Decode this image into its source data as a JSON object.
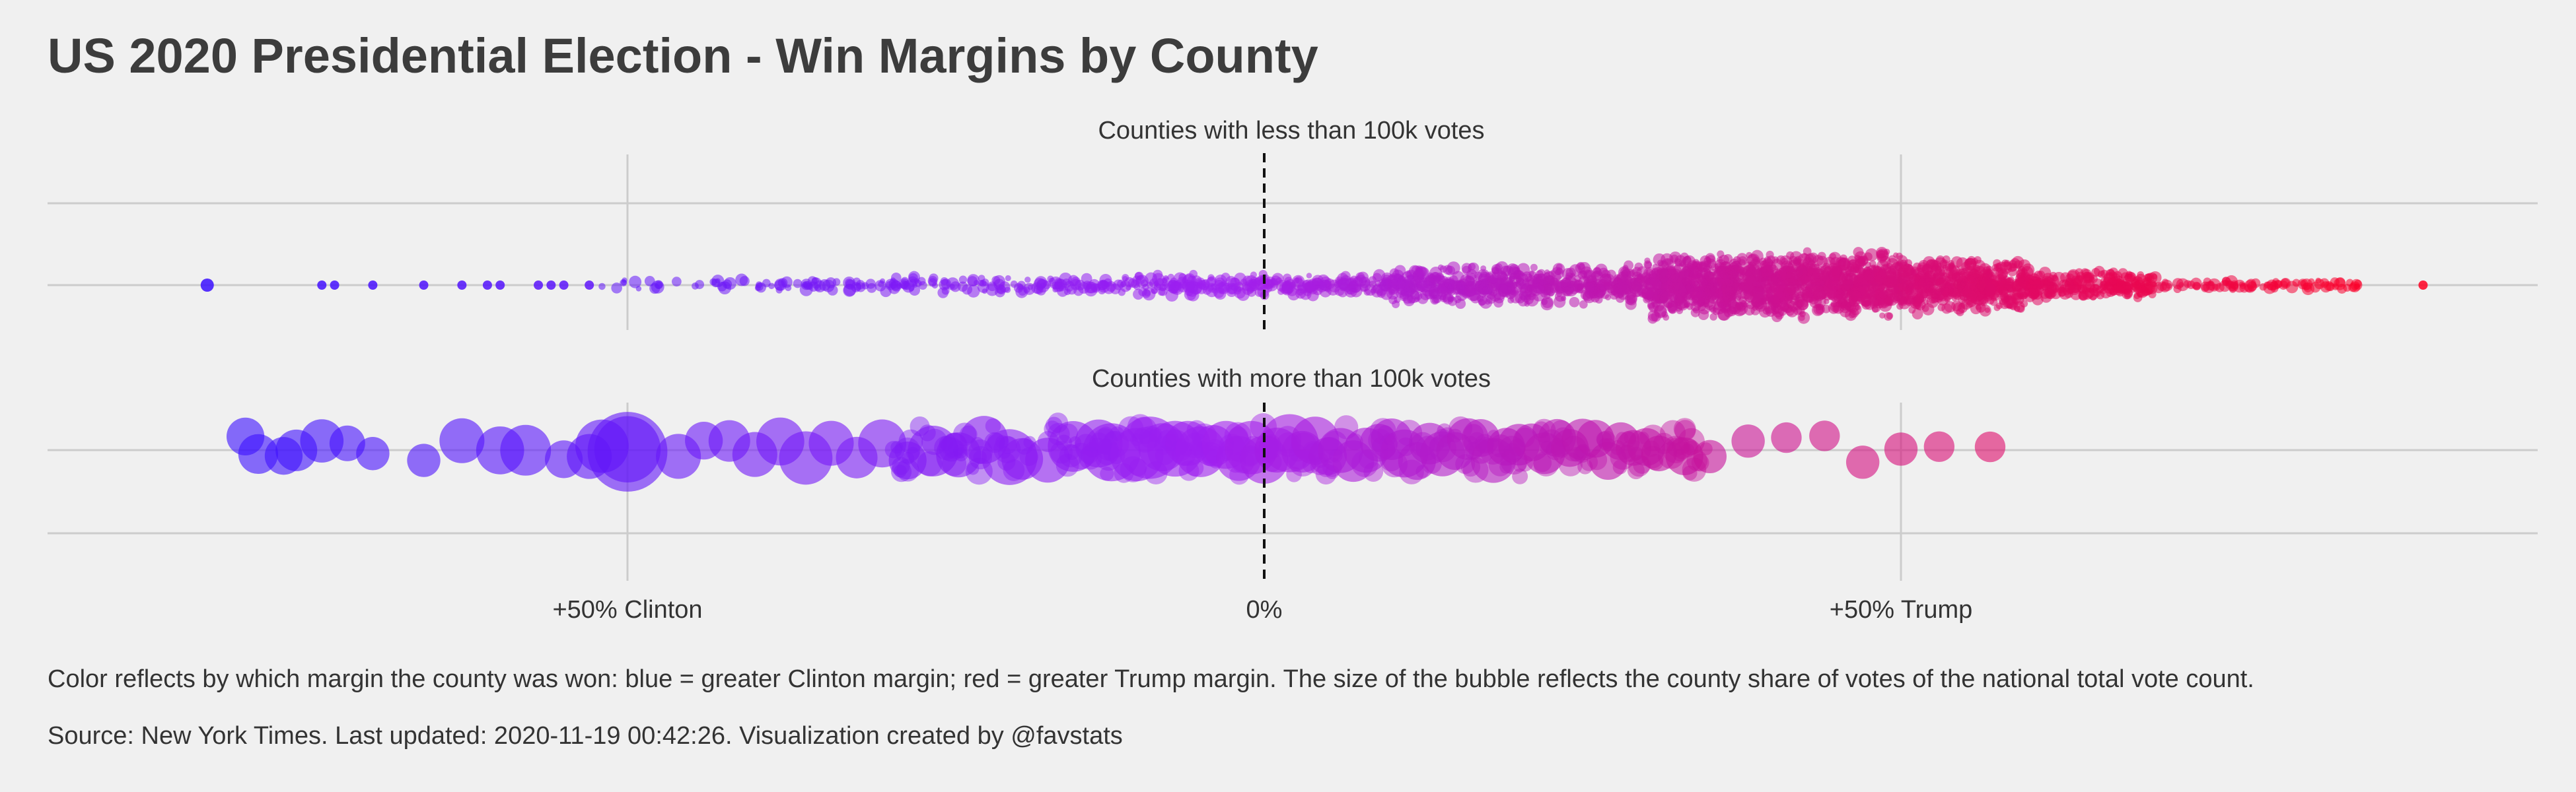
{
  "title": "US 2020 Presidential Election - Win Margins by County",
  "caption": "Color reflects by which margin the county was won: blue = greater Clinton margin; red = greater Trump margin. The size of the bubble reflects the county share of votes of the national total vote count.",
  "source": "Source: New York Times. Last updated: 2020-11-19 00:42:26. Visualization created by @favstats",
  "colors": {
    "background": "#f0f0f0",
    "grid": "#cccccc",
    "clinton": "#3b0fff",
    "mid": "#a020f0",
    "trump": "#ff0022",
    "zero_line": "#111111"
  },
  "chart_data": {
    "type": "scatter",
    "subtype": "beeswarm bubble",
    "x_label": "",
    "xlim": [
      -0.92,
      1.04
    ],
    "x_ticks": [
      {
        "value": -0.5,
        "label": "+50% Clinton"
      },
      {
        "value": 0,
        "label": "0%"
      },
      {
        "value": 0.5,
        "label": "+50% Trump"
      }
    ],
    "reference_line": {
      "x": 0,
      "style": "dashed"
    },
    "grid": true,
    "legend": "none",
    "panels": [
      {
        "name": "Counties with less than 100k votes",
        "density_segments": [
          {
            "from": -0.52,
            "to": -0.3,
            "count": 70,
            "spread": 0.18
          },
          {
            "from": -0.3,
            "to": -0.1,
            "count": 140,
            "spread": 0.25
          },
          {
            "from": -0.1,
            "to": 0.1,
            "count": 260,
            "spread": 0.35
          },
          {
            "from": 0.1,
            "to": 0.3,
            "count": 600,
            "spread": 0.6
          },
          {
            "from": 0.3,
            "to": 0.5,
            "count": 1300,
            "spread": 1.0
          },
          {
            "from": 0.5,
            "to": 0.6,
            "count": 520,
            "spread": 0.85
          },
          {
            "from": 0.6,
            "to": 0.7,
            "count": 230,
            "spread": 0.45
          },
          {
            "from": 0.7,
            "to": 0.86,
            "count": 90,
            "spread": 0.15
          }
        ],
        "outliers": [
          -0.83,
          -0.74,
          -0.73,
          -0.7,
          -0.66,
          -0.63,
          -0.61,
          -0.6,
          -0.57,
          -0.56,
          -0.55,
          -0.53,
          0.91
        ]
      },
      {
        "name": "Counties with more than 100k votes",
        "bubbles": [
          {
            "margin": -0.8,
            "share": 0.3
          },
          {
            "margin": -0.79,
            "share": 0.35
          },
          {
            "margin": -0.77,
            "share": 0.3
          },
          {
            "margin": -0.76,
            "share": 0.4
          },
          {
            "margin": -0.74,
            "share": 0.45
          },
          {
            "margin": -0.72,
            "share": 0.25
          },
          {
            "margin": -0.7,
            "share": 0.2
          },
          {
            "margin": -0.66,
            "share": 0.2
          },
          {
            "margin": -0.63,
            "share": 0.5
          },
          {
            "margin": -0.6,
            "share": 0.6
          },
          {
            "margin": -0.58,
            "share": 0.7
          },
          {
            "margin": -0.55,
            "share": 0.3
          },
          {
            "margin": -0.53,
            "share": 0.5
          },
          {
            "margin": -0.52,
            "share": 0.8
          },
          {
            "margin": -0.5,
            "share": 1.4
          },
          {
            "margin": -0.5,
            "share": 2.2
          },
          {
            "margin": -0.46,
            "share": 0.5
          },
          {
            "margin": -0.44,
            "share": 0.3
          },
          {
            "margin": -0.42,
            "share": 0.4
          },
          {
            "margin": -0.4,
            "share": 0.5
          },
          {
            "margin": -0.38,
            "share": 0.6
          },
          {
            "margin": -0.36,
            "share": 0.8
          },
          {
            "margin": -0.34,
            "share": 0.5
          },
          {
            "margin": -0.32,
            "share": 0.4
          },
          {
            "margin": -0.3,
            "share": 0.6
          },
          {
            "margin": -0.28,
            "share": 0.3
          },
          {
            "margin": -0.26,
            "share": 0.7
          },
          {
            "margin": -0.24,
            "share": 0.5
          },
          {
            "margin": -0.22,
            "share": 0.6
          },
          {
            "margin": -0.2,
            "share": 0.9
          },
          {
            "margin": -0.19,
            "share": 0.4
          },
          {
            "margin": -0.17,
            "share": 0.5
          },
          {
            "margin": -0.15,
            "share": 0.7
          },
          {
            "margin": -0.13,
            "share": 0.6
          },
          {
            "margin": -0.12,
            "share": 1.0
          },
          {
            "margin": -0.1,
            "share": 0.8
          },
          {
            "margin": -0.09,
            "share": 1.2
          },
          {
            "margin": -0.08,
            "share": 0.6
          },
          {
            "margin": -0.07,
            "share": 0.9
          },
          {
            "margin": -0.06,
            "share": 0.5
          },
          {
            "margin": -0.05,
            "share": 0.7
          },
          {
            "margin": -0.04,
            "share": 0.4
          },
          {
            "margin": -0.03,
            "share": 0.6
          },
          {
            "margin": -0.02,
            "share": 0.5
          },
          {
            "margin": -0.01,
            "share": 0.8
          },
          {
            "margin": 0.0,
            "share": 0.6
          },
          {
            "margin": 0.01,
            "share": 0.5
          },
          {
            "margin": 0.02,
            "share": 1.0
          },
          {
            "margin": 0.03,
            "share": 0.4
          },
          {
            "margin": 0.04,
            "share": 0.6
          },
          {
            "margin": 0.05,
            "share": 0.3
          },
          {
            "margin": 0.06,
            "share": 0.5
          },
          {
            "margin": 0.07,
            "share": 0.4
          },
          {
            "margin": 0.08,
            "share": 0.5
          },
          {
            "margin": 0.09,
            "share": 0.3
          },
          {
            "margin": 0.1,
            "share": 0.4
          },
          {
            "margin": 0.11,
            "share": 0.6
          },
          {
            "margin": 0.12,
            "share": 0.3
          },
          {
            "margin": 0.13,
            "share": 0.4
          },
          {
            "margin": 0.14,
            "share": 0.5
          },
          {
            "margin": 0.15,
            "share": 0.3
          },
          {
            "margin": 0.16,
            "share": 0.4
          },
          {
            "margin": 0.17,
            "share": 0.3
          },
          {
            "margin": 0.18,
            "share": 0.5
          },
          {
            "margin": 0.19,
            "share": 0.3
          },
          {
            "margin": 0.2,
            "share": 0.4
          },
          {
            "margin": 0.21,
            "share": 0.3
          },
          {
            "margin": 0.22,
            "share": 0.4
          },
          {
            "margin": 0.23,
            "share": 0.3
          },
          {
            "margin": 0.24,
            "share": 0.3
          },
          {
            "margin": 0.25,
            "share": 0.4
          },
          {
            "margin": 0.26,
            "share": 0.3
          },
          {
            "margin": 0.27,
            "share": 0.3
          },
          {
            "margin": 0.28,
            "share": 0.3
          },
          {
            "margin": 0.29,
            "share": 0.25
          },
          {
            "margin": 0.3,
            "share": 0.3
          },
          {
            "margin": 0.31,
            "share": 0.25
          },
          {
            "margin": 0.33,
            "share": 0.3
          },
          {
            "margin": 0.35,
            "share": 0.2
          },
          {
            "margin": 0.38,
            "share": 0.2
          },
          {
            "margin": 0.41,
            "share": 0.15
          },
          {
            "margin": 0.44,
            "share": 0.15
          },
          {
            "margin": 0.47,
            "share": 0.2
          },
          {
            "margin": 0.5,
            "share": 0.2
          },
          {
            "margin": 0.53,
            "share": 0.15
          },
          {
            "margin": 0.57,
            "share": 0.15
          }
        ],
        "extra_cloud": {
          "from": -0.3,
          "to": 0.35,
          "count": 260
        }
      }
    ]
  }
}
